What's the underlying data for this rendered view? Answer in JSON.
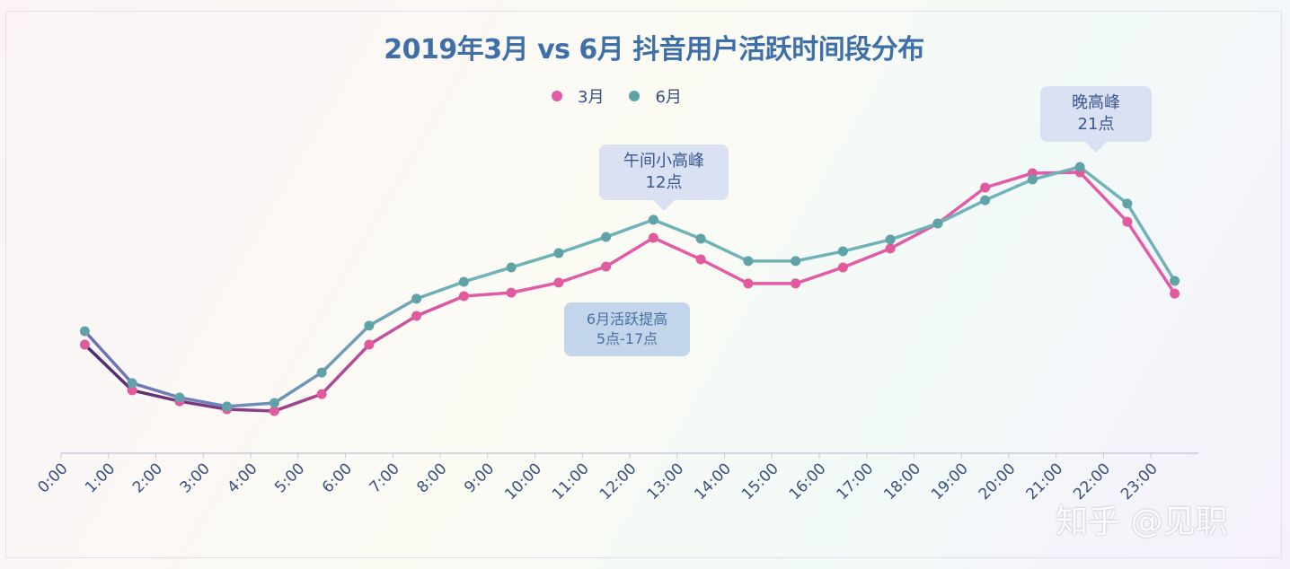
{
  "chart_data": {
    "type": "line",
    "title": "2019年3月 vs 6月 抖音用户活跃时间段分布",
    "categories": [
      "0:00",
      "1:00",
      "2:00",
      "3:00",
      "4:00",
      "5:00",
      "6:00",
      "7:00",
      "8:00",
      "9:00",
      "10:00",
      "11:00",
      "12:00",
      "13:00",
      "14:00",
      "15:00",
      "16:00",
      "17:00",
      "18:00",
      "19:00",
      "20:00",
      "21:00",
      "22:00",
      "23:00"
    ],
    "series": [
      {
        "name": "3月",
        "color_start": "#4a2a6a",
        "color_end": "#e35aa6",
        "values": [
          37.8,
          21.9,
          18.1,
          15.3,
          14.7,
          20.6,
          37.8,
          47.8,
          54.7,
          55.9,
          59.4,
          65.0,
          75.0,
          67.5,
          59.1,
          59.1,
          64.7,
          71.3,
          80.0,
          92.5,
          97.5,
          97.8,
          80.6,
          55.6
        ]
      },
      {
        "name": "6月",
        "color_start": "#6b6fb8",
        "color_end": "#6fb3b8",
        "values": [
          42.5,
          24.4,
          19.4,
          16.3,
          17.5,
          28.1,
          44.4,
          53.8,
          59.7,
          64.7,
          69.7,
          75.3,
          81.3,
          74.7,
          66.9,
          66.9,
          70.3,
          74.4,
          80.0,
          88.1,
          95.3,
          99.7,
          86.9,
          60.0
        ]
      }
    ],
    "ylim": [
      0,
      110
    ],
    "y_axis_shown": false,
    "grid": false,
    "legend_position": "top-center",
    "annotations": [
      {
        "text_line1": "午间小高峰",
        "text_line2": "12点"
      },
      {
        "text_line1": "晚高峰",
        "text_line2": "21点"
      },
      {
        "text_line1": "6月活跃提高",
        "text_line2": "5点-17点"
      }
    ]
  },
  "watermark": "知乎 @见职"
}
